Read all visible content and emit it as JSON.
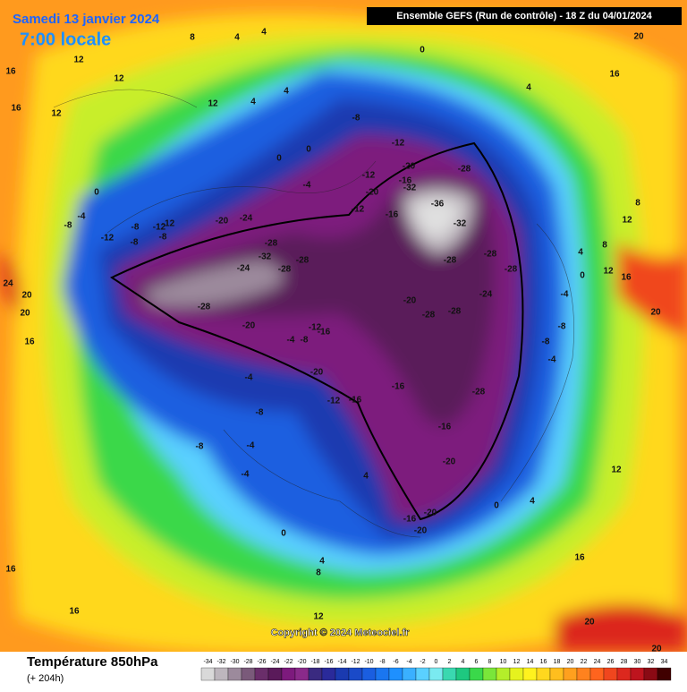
{
  "header": {
    "date": "Samedi 13 janvier 2024",
    "time": "7:00 locale",
    "run": "Ensemble GEFS  (Run de contrôle)  -  18 Z du 04/01/2024"
  },
  "copyright": "Copyright © 2024 Meteociel.fr",
  "footer": {
    "title": "Température 850hPa",
    "lead": "(+ 204h)"
  },
  "legend": {
    "values": [
      -34,
      -32,
      -30,
      -28,
      -26,
      -24,
      -22,
      -20,
      -18,
      -16,
      -14,
      -12,
      -10,
      -8,
      -6,
      -4,
      -2,
      0,
      2,
      4,
      6,
      8,
      10,
      12,
      14,
      16,
      18,
      20,
      22,
      24,
      26,
      28,
      30,
      32,
      34
    ],
    "colors": [
      "#d9d9d9",
      "#bdb6bd",
      "#9c8a9c",
      "#7a5a7a",
      "#6a2e6a",
      "#5a1a5a",
      "#7d1a7d",
      "#8a2a8a",
      "#3a2a80",
      "#2a2a9a",
      "#1a3ab0",
      "#1a4ac8",
      "#1a5ee0",
      "#1a76f0",
      "#1e90ff",
      "#3ab0ff",
      "#5ad0ff",
      "#7aeaf0",
      "#3ad8b0",
      "#1ec880",
      "#3ad84a",
      "#7ae63a",
      "#b4ee2a",
      "#e6f21e",
      "#fff21e",
      "#ffd81e",
      "#ffbe1e",
      "#ffa01e",
      "#ff821e",
      "#ff641e",
      "#f0461e",
      "#dc281e",
      "#be141e",
      "#8a0a14",
      "#400000"
    ]
  },
  "map_labels": [
    -12,
    -20,
    -16,
    -32,
    -20,
    -12,
    -8,
    -12,
    -16,
    -28,
    -36,
    -32,
    -28,
    -28,
    -28,
    -24,
    -28,
    -28,
    -20,
    -28,
    -16,
    -16,
    -20,
    -16,
    -20,
    -20,
    -16,
    -12,
    -20,
    -16,
    -12,
    -8,
    -4,
    -20,
    -28,
    -24,
    -28,
    -28,
    -32,
    -28,
    -24,
    -20,
    -12,
    -12,
    -8,
    -8,
    -8,
    -12,
    -8,
    -4,
    0,
    -4,
    0,
    0,
    4,
    4,
    12,
    8,
    4,
    4,
    12,
    16,
    12,
    16,
    12,
    24,
    20,
    16,
    20,
    -8,
    -4,
    -8,
    -4,
    -4,
    4,
    0,
    4,
    8,
    12,
    16,
    16,
    -8,
    -4,
    -8,
    0,
    4,
    8,
    12,
    16,
    20,
    20,
    16,
    12,
    8,
    4,
    0,
    12,
    16,
    20,
    20,
    4,
    0,
    -4
  ]
}
